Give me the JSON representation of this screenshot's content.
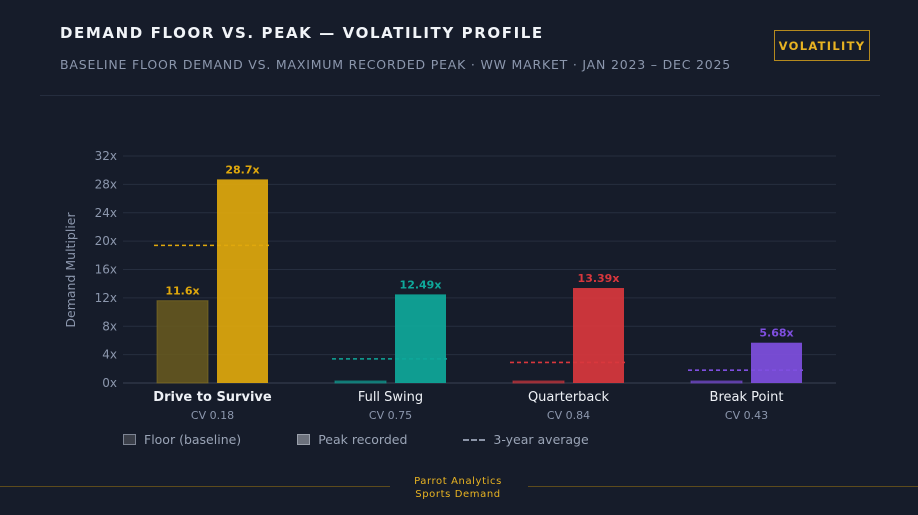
{
  "header": {
    "title": "DEMAND FLOOR VS. PEAK — VOLATILITY PROFILE",
    "subtitle": "BASELINE FLOOR DEMAND VS. MAXIMUM RECORDED PEAK · WW MARKET · JAN 2023 – DEC 2025",
    "badge": "VOLATILITY"
  },
  "legend": {
    "floor": "Floor (baseline)",
    "peak": "Peak recorded",
    "avg_glyph": "---",
    "avg": "3-year average"
  },
  "footer": {
    "line1": "Parrot Analytics",
    "line2": "Sports Demand"
  },
  "colors": {
    "drive": "#e0a80c",
    "swing": "#0fa89a",
    "qb": "#d9373d",
    "bp": "#7f4fe0",
    "floor_drive": "#6a5a1f"
  },
  "chart_data": {
    "type": "bar",
    "ylabel": "Demand Multiplier",
    "ylim": [
      0,
      32
    ],
    "yticks": [
      0,
      4,
      8,
      12,
      16,
      20,
      24,
      28,
      32
    ],
    "tick_suffix": "x",
    "categories": [
      "Drive to Survive",
      "Full Swing",
      "Quarterback",
      "Break Point"
    ],
    "cv_labels": [
      "CV 0.18",
      "CV 0.75",
      "CV 0.84",
      "CV 0.43"
    ],
    "series": [
      {
        "name": "Floor (baseline)",
        "values": [
          11.6,
          0.2,
          0.2,
          0.2
        ],
        "labels": [
          "11.6x",
          "",
          "",
          ""
        ]
      },
      {
        "name": "Peak recorded",
        "values": [
          28.7,
          12.49,
          13.39,
          5.68
        ],
        "labels": [
          "28.7x",
          "12.49x",
          "13.39x",
          "5.68x"
        ]
      },
      {
        "name": "3-year average",
        "values": [
          19.4,
          3.4,
          2.9,
          1.8
        ]
      }
    ]
  }
}
